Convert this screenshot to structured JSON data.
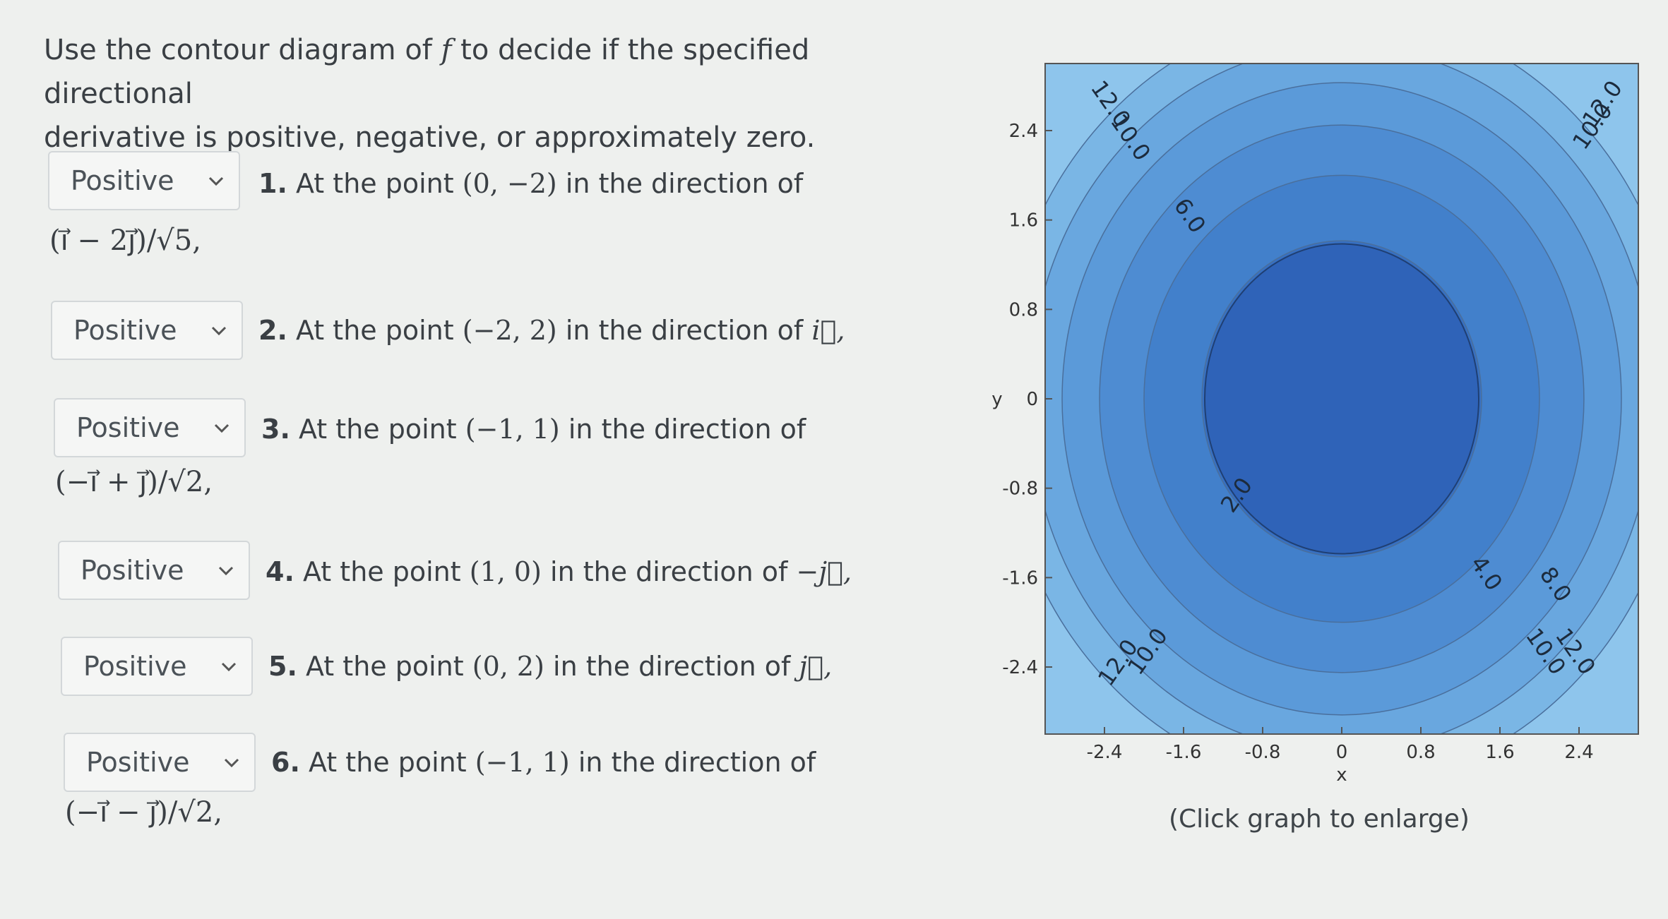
{
  "intro": {
    "line1_a": "Use the contour diagram of",
    "line1_f": "f",
    "line1_b": "to decide if the specified directional",
    "line2": "derivative is positive, negative, or approximately zero."
  },
  "questions": [
    {
      "select": "Positive",
      "num": "1.",
      "text": "At the point",
      "point": "(0, −2)",
      "after": "in the direction of",
      "cont": "(i⃗ − 2j⃗)/√5,"
    },
    {
      "select": "Positive",
      "num": "2.",
      "text": "At the point",
      "point": "(−2, 2)",
      "after": "in the direction of",
      "vec": "i⃗,"
    },
    {
      "select": "Positive",
      "num": "3.",
      "text": "At the point",
      "point": "(−1, 1)",
      "after": "in the direction of",
      "cont": "(−i⃗ + j⃗)/√2,"
    },
    {
      "select": "Positive",
      "num": "4.",
      "text": "At the point",
      "point": "(1, 0)",
      "after": "in the direction of",
      "vec": "−j⃗,"
    },
    {
      "select": "Positive",
      "num": "5.",
      "text": "At the point",
      "point": "(0, 2)",
      "after": "in the direction of",
      "vec": "j⃗,"
    },
    {
      "select": "Positive",
      "num": "6.",
      "text": "At the point",
      "point": "(−1, 1)",
      "after": "in the direction of",
      "cont": "(−i⃗ − j⃗)/√2,"
    }
  ],
  "chart_data": {
    "type": "contour",
    "title": "",
    "xlabel": "x",
    "ylabel": "y",
    "xlim": [
      -3,
      3
    ],
    "ylim": [
      -3,
      3
    ],
    "x_ticks": [
      "-2.4",
      "-1.6",
      "-0.8",
      "0",
      "0.8",
      "1.6",
      "2.4"
    ],
    "y_ticks": [
      "2.4",
      "1.6",
      "0.8",
      "0",
      "-0.8",
      "-1.6",
      "-2.4"
    ],
    "levels": [
      2.0,
      4.0,
      6.0,
      8.0,
      10.0,
      12.0
    ],
    "contour_labels": [
      {
        "text": "12.0",
        "x": -2.4,
        "y": 2.6
      },
      {
        "text": "10.0",
        "x": -2.2,
        "y": 2.3
      },
      {
        "text": "6.0",
        "x": -1.6,
        "y": 1.6
      },
      {
        "text": "2.0",
        "x": -1.0,
        "y": -0.9
      },
      {
        "text": "4.0",
        "x": 1.4,
        "y": -1.6
      },
      {
        "text": "8.0",
        "x": 2.1,
        "y": -1.7
      },
      {
        "text": "10.0",
        "x": 2.0,
        "y": -2.3
      },
      {
        "text": "12.0",
        "x": 2.3,
        "y": -2.3
      },
      {
        "text": "10.0",
        "x": -1.9,
        "y": -2.3
      },
      {
        "text": "12.0",
        "x": -2.2,
        "y": -2.4
      },
      {
        "text": "12.0",
        "x": 2.7,
        "y": 2.6
      },
      {
        "text": "10.0",
        "x": 2.6,
        "y": 2.4
      }
    ],
    "colors": {
      "outer": "#8ec5ec",
      "l12": "#7ab6e5",
      "l10": "#69a7df",
      "l8": "#5b9ad9",
      "l6": "#4e8cd2",
      "l4": "#4280cb",
      "l2": "#3770c2",
      "center": "#2f63b8"
    }
  },
  "graph": {
    "caption": "(Click graph to enlarge)"
  }
}
